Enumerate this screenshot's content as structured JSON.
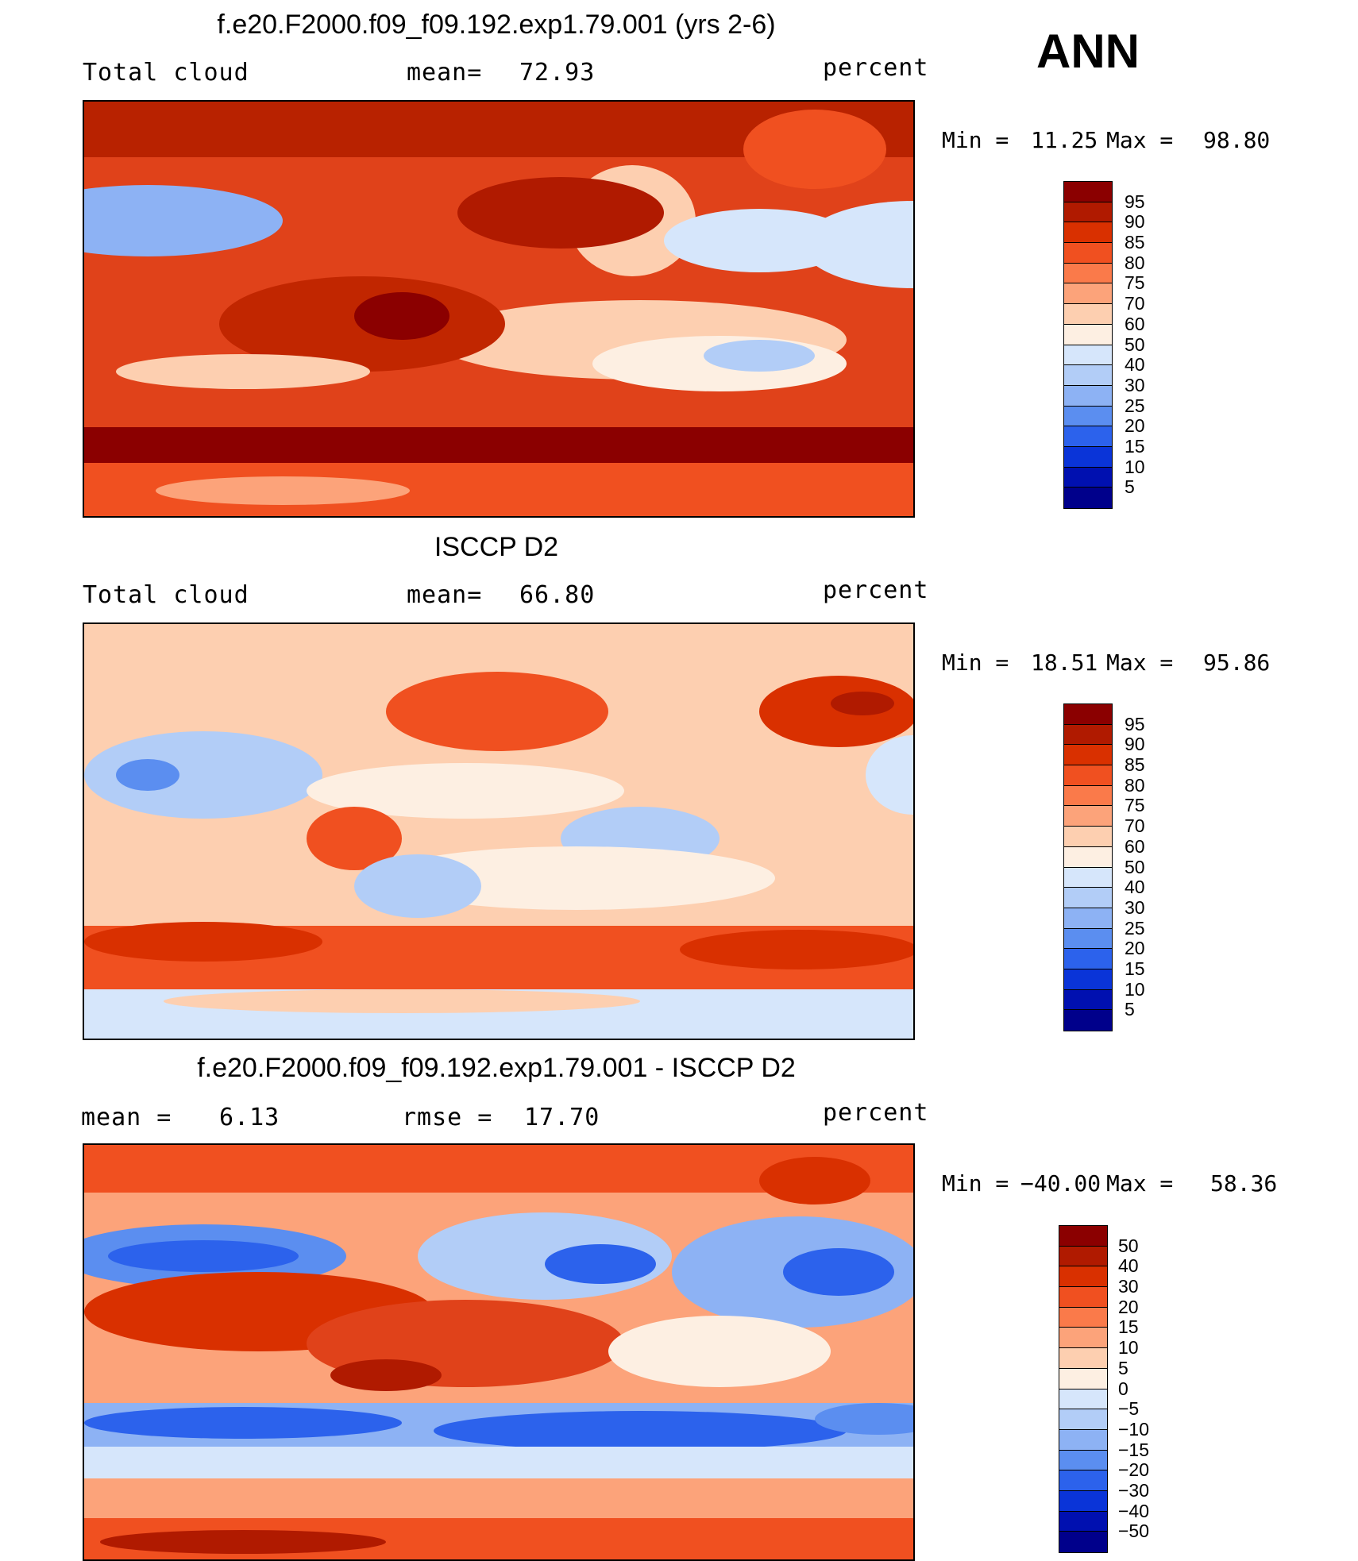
{
  "season": "ANN",
  "panels": [
    {
      "title": "f.e20.F2000.f09_f09.192.exp1.79.001 (yrs 2-6)",
      "left_label": "Total cloud",
      "center_label": "mean=",
      "center_value": "72.93",
      "right_label": "percent",
      "min_label": "Min =",
      "min_value": "11.25",
      "max_label": "Max =",
      "max_value": "98.80",
      "colorbar_labels": [
        "95",
        "90",
        "85",
        "80",
        "75",
        "70",
        "60",
        "50",
        "40",
        "30",
        "25",
        "20",
        "15",
        "10",
        "5"
      ],
      "colorbar_colors": [
        "#8b0000",
        "#b01a00",
        "#d93000",
        "#f05020",
        "#fa7a4a",
        "#fca37a",
        "#fdcfb0",
        "#fdefe2",
        "#d6e6fb",
        "#b2cdf7",
        "#8db2f4",
        "#5b8ef0",
        "#2c62ec",
        "#0a34d8",
        "#0010b0",
        "#00008b"
      ]
    },
    {
      "title": "ISCCP D2",
      "left_label": "Total cloud",
      "center_label": "mean=",
      "center_value": "66.80",
      "right_label": "percent",
      "min_label": "Min =",
      "min_value": "18.51",
      "max_label": "Max =",
      "max_value": "95.86",
      "colorbar_labels": [
        "95",
        "90",
        "85",
        "80",
        "75",
        "70",
        "60",
        "50",
        "40",
        "30",
        "25",
        "20",
        "15",
        "10",
        "5"
      ],
      "colorbar_colors": [
        "#8b0000",
        "#b01a00",
        "#d93000",
        "#f05020",
        "#fa7a4a",
        "#fca37a",
        "#fdcfb0",
        "#fdefe2",
        "#d6e6fb",
        "#b2cdf7",
        "#8db2f4",
        "#5b8ef0",
        "#2c62ec",
        "#0a34d8",
        "#0010b0",
        "#00008b"
      ]
    },
    {
      "title": "f.e20.F2000.f09_f09.192.exp1.79.001 - ISCCP D2",
      "left_label": "mean =",
      "left_value": "6.13",
      "center_label": "rmse =",
      "center_value": "17.70",
      "right_label": "percent",
      "min_label": "Min =",
      "min_value": "−40.00",
      "max_label": "Max =",
      "max_value": "58.36",
      "colorbar_labels": [
        "50",
        "40",
        "30",
        "20",
        "15",
        "10",
        "5",
        "0",
        "−5",
        "−10",
        "−15",
        "−20",
        "−30",
        "−40",
        "−50"
      ],
      "colorbar_colors": [
        "#8b0000",
        "#b01a00",
        "#d93000",
        "#f05020",
        "#fa7a4a",
        "#fca37a",
        "#fdcfb0",
        "#fdefe2",
        "#d6e6fb",
        "#b2cdf7",
        "#8db2f4",
        "#5b8ef0",
        "#2c62ec",
        "#0a34d8",
        "#0010b0",
        "#00008b"
      ]
    }
  ]
}
